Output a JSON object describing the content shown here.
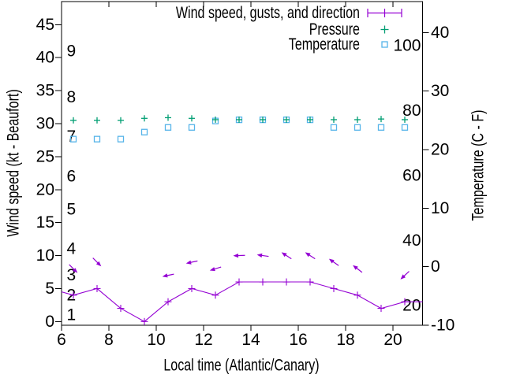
{
  "figure": {
    "background": "#ffffff",
    "xlabel": "Local time (Atlantic/Canary)",
    "ylabel_left": "Wind speed (kt - Beaufort)",
    "ylabel_right": "Temperature (C - F)"
  },
  "legend": {
    "position": "top-right-inside",
    "entries": [
      {
        "label": "Wind speed, gusts, and direction",
        "marker": "errorbar-with-plus",
        "color": "#9400d3"
      },
      {
        "label": "Pressure",
        "marker": "plus",
        "color": "#009e73"
      },
      {
        "label": "Temperature",
        "marker": "open-square",
        "color": "#56b4e9"
      }
    ]
  },
  "chart_data": {
    "type": "line",
    "grid": false,
    "x_axis": {
      "label": "Local time (Atlantic/Canary)",
      "range": [
        6,
        21.25
      ],
      "ticks": [
        6,
        8,
        10,
        12,
        14,
        16,
        18,
        20
      ]
    },
    "y_axis_left": {
      "label": "Wind speed (kt - Beaufort)",
      "range_kt": [
        -0.56,
        48.5
      ],
      "ticks_kt": [
        0,
        5,
        10,
        15,
        20,
        25,
        30,
        35,
        40,
        45
      ],
      "beaufort_inner_ticks": [
        {
          "label": "1",
          "kt": 1
        },
        {
          "label": "2",
          "kt": 4
        },
        {
          "label": "3",
          "kt": 7
        },
        {
          "label": "4",
          "kt": 11
        },
        {
          "label": "5",
          "kt": 17
        },
        {
          "label": "6",
          "kt": 22
        },
        {
          "label": "7",
          "kt": 28
        },
        {
          "label": "8",
          "kt": 34
        },
        {
          "label": "9",
          "kt": 41
        }
      ]
    },
    "y_axis_right": {
      "label": "Temperature (C - F)",
      "range_c": [
        -10,
        45.3
      ],
      "ticks_c": [
        -10,
        0,
        10,
        20,
        30,
        40
      ],
      "fahrenheit_inner_ticks": [
        20,
        40,
        60,
        80,
        100
      ]
    },
    "hours": [
      6.5,
      7.5,
      8.5,
      9.5,
      10.5,
      11.5,
      12.5,
      13.5,
      14.5,
      15.5,
      16.5,
      17.5,
      18.5,
      19.5,
      20.5
    ],
    "series": [
      {
        "name": "Wind speed",
        "color": "#9400d3",
        "axis": "kt",
        "style": "line-with-plus-markers",
        "values_kt": [
          4,
          5,
          2,
          0,
          3,
          5,
          4,
          6,
          6,
          6,
          6,
          5,
          4,
          2,
          3
        ],
        "edge_left": {
          "x": 6.0,
          "kt": 4.5
        },
        "edge_right": {
          "x": 21.25,
          "kt": 3
        }
      },
      {
        "name": "Wind gusts and direction",
        "color": "#9400d3",
        "axis": "kt",
        "style": "direction-arrows",
        "angle_convention": "degrees clockwise on screen, 0 = right, 90 = down",
        "arrows": [
          {
            "x": 6.5,
            "kt": 8,
            "angle": 45
          },
          {
            "x": 7.5,
            "kt": 9,
            "angle": 45
          },
          {
            "x": 10.5,
            "kt": 7,
            "angle": 168
          },
          {
            "x": 11.5,
            "kt": 9,
            "angle": 168
          },
          {
            "x": 12.5,
            "kt": 8,
            "angle": 163
          },
          {
            "x": 13.5,
            "kt": 10,
            "angle": 178
          },
          {
            "x": 14.5,
            "kt": 10,
            "angle": 188
          },
          {
            "x": 15.5,
            "kt": 10,
            "angle": 213
          },
          {
            "x": 16.5,
            "kt": 10,
            "angle": 213
          },
          {
            "x": 17.5,
            "kt": 9,
            "angle": 215
          },
          {
            "x": 18.5,
            "kt": 8,
            "angle": 218
          },
          {
            "x": 20.5,
            "kt": 7,
            "angle": 137
          }
        ]
      },
      {
        "name": "Pressure",
        "color": "#009e73",
        "axis": "left-kt-scale-equivalent",
        "style": "plus-markers",
        "plotted_kt_equivalent": [
          30.5,
          30.5,
          30.5,
          30.8,
          30.9,
          30.8,
          30.6,
          30.6,
          30.6,
          30.6,
          30.6,
          30.6,
          30.6,
          30.7,
          30.6
        ]
      },
      {
        "name": "Temperature",
        "color": "#56b4e9",
        "axis": "celsius",
        "style": "open-square-markers",
        "values_c": [
          21.8,
          21.8,
          21.8,
          23.0,
          23.8,
          23.8,
          24.9,
          25.1,
          25.1,
          25.1,
          25.1,
          23.8,
          23.8,
          23.8,
          23.8
        ]
      }
    ]
  }
}
